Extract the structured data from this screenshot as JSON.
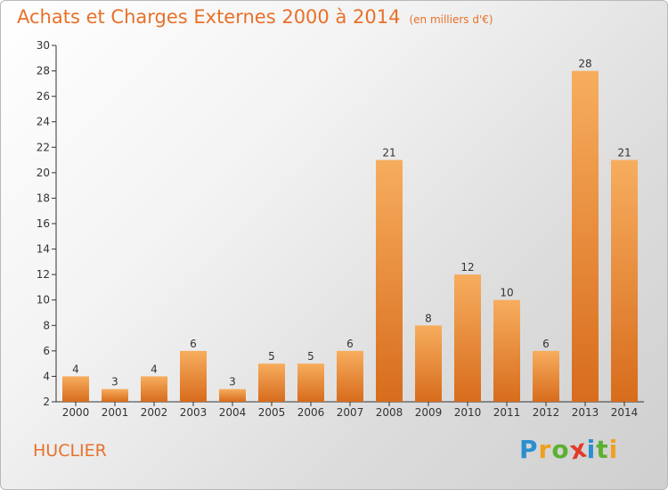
{
  "title": "Achats et Charges Externes 2000 à 2014",
  "unit_note": "(en milliers d'€)",
  "place_name": "HUCLIER",
  "logo": {
    "letters": [
      "P",
      "r",
      "o",
      "x",
      "i",
      "t",
      "i"
    ],
    "colors": [
      "#2a8fd0",
      "#f0a020",
      "#5cb030",
      "#e23a2a",
      "#2a8fd0",
      "#5cb030",
      "#f0a020"
    ]
  },
  "colors": {
    "title": "#e8702a",
    "bar_light": "#f5a85a",
    "bar_dark": "#d86e1e",
    "axis": "#333333"
  },
  "chart_data": {
    "type": "bar",
    "title": "Achats et Charges Externes 2000 à 2014",
    "xlabel": "",
    "ylabel": "",
    "categories": [
      "2000",
      "2001",
      "2002",
      "2003",
      "2004",
      "2005",
      "2006",
      "2007",
      "2008",
      "2009",
      "2010",
      "2011",
      "2012",
      "2013",
      "2014"
    ],
    "values": [
      4,
      3,
      4,
      6,
      3,
      5,
      5,
      6,
      21,
      8,
      12,
      10,
      6,
      28,
      21
    ],
    "ylim": [
      2,
      30
    ],
    "yticks": [
      2,
      4,
      6,
      8,
      10,
      12,
      14,
      16,
      18,
      20,
      22,
      24,
      26,
      28,
      30
    ],
    "grid": false,
    "legend": "none"
  }
}
